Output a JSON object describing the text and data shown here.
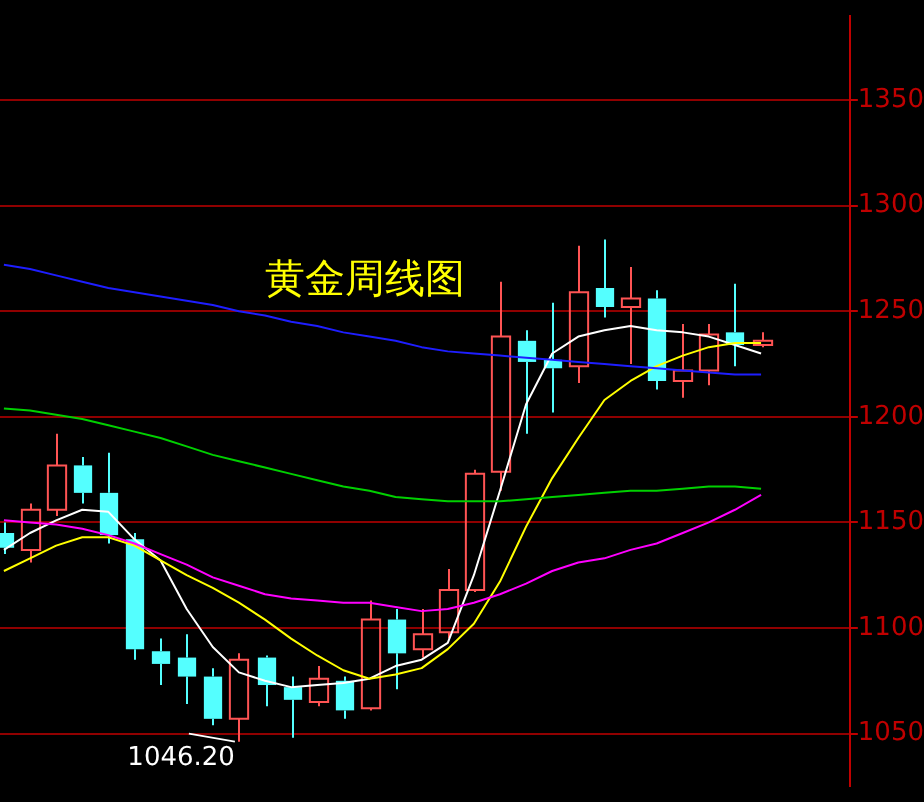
{
  "chart_data": {
    "type": "candlestick",
    "title": "黄金周线图",
    "annotations": [
      "1046.20"
    ],
    "categories": [
      null,
      null,
      null,
      null,
      null,
      null,
      null,
      null,
      null,
      null,
      null,
      null,
      null,
      null,
      null,
      null,
      null,
      null,
      null,
      null,
      null,
      null,
      null,
      null,
      null,
      null,
      null,
      null,
      null,
      null
    ],
    "ohlc": [
      [
        1145,
        1150,
        1135,
        1138
      ],
      [
        1137,
        1159,
        1131,
        1156
      ],
      [
        1156,
        1192,
        1153,
        1177
      ],
      [
        1177,
        1181,
        1159,
        1164
      ],
      [
        1164,
        1183,
        1140,
        1144
      ],
      [
        1142,
        1145,
        1085,
        1090
      ],
      [
        1089,
        1095,
        1073,
        1083
      ],
      [
        1086,
        1097,
        1064,
        1077
      ],
      [
        1077,
        1081,
        1054,
        1057
      ],
      [
        1057,
        1088,
        1046.2,
        1085
      ],
      [
        1086,
        1087,
        1063,
        1073
      ],
      [
        1072,
        1077,
        1048,
        1066
      ],
      [
        1065,
        1082,
        1063,
        1076
      ],
      [
        1075,
        1077,
        1057,
        1061
      ],
      [
        1062,
        1113,
        1061,
        1104
      ],
      [
        1104,
        1109,
        1071,
        1088
      ],
      [
        1090,
        1109,
        1086,
        1097
      ],
      [
        1098,
        1128,
        1095,
        1118
      ],
      [
        1118,
        1175,
        1117,
        1173
      ],
      [
        1174,
        1264,
        1165,
        1238
      ],
      [
        1236,
        1241,
        1192,
        1226
      ],
      [
        1227,
        1254,
        1202,
        1223
      ],
      [
        1224,
        1281,
        1216,
        1259
      ],
      [
        1261,
        1284,
        1247,
        1252
      ],
      [
        1252,
        1271,
        1225,
        1256
      ],
      [
        1256,
        1260,
        1213,
        1217
      ],
      [
        1217,
        1244,
        1209,
        1222
      ],
      [
        1222,
        1244,
        1215,
        1239
      ],
      [
        1240,
        1263,
        1224,
        1234
      ],
      [
        1234,
        1240,
        1233,
        1236
      ]
    ],
    "colors": [
      "#54ffff",
      "#ff5454",
      "#ff5454",
      "#54ffff",
      "#54ffff",
      "#54ffff",
      "#54ffff",
      "#54ffff",
      "#54ffff",
      "#ff5454",
      "#54ffff",
      "#54ffff",
      "#ff5454",
      "#54ffff",
      "#ff5454",
      "#54ffff",
      "#ff5454",
      "#ff5454",
      "#ff5454",
      "#ff5454",
      "#54ffff",
      "#54ffff",
      "#ff5454",
      "#54ffff",
      "#ff5454",
      "#54ffff",
      "#ff5454",
      "#ff5454",
      "#54ffff",
      "#ff5454"
    ],
    "series": [
      {
        "type": "line",
        "color": "#1e1eff",
        "values": [
          1272,
          1270,
          1267,
          1264,
          1261,
          1259,
          1257,
          1255,
          1253,
          1250,
          1248,
          1245,
          1243,
          1240,
          1238,
          1236,
          1233,
          1231,
          1230,
          1229,
          1228,
          1227,
          1226,
          1225,
          1224,
          1223,
          1222,
          1221,
          1220,
          1220
        ]
      },
      {
        "type": "line",
        "color": "#00d000",
        "values": [
          1204,
          1203,
          1201,
          1199,
          1196,
          1193,
          1190,
          1186,
          1182,
          1179,
          1176,
          1173,
          1170,
          1167,
          1165,
          1162,
          1161,
          1160,
          1160,
          1160,
          1161,
          1162,
          1163,
          1164,
          1165,
          1165,
          1166,
          1167,
          1167,
          1166
        ]
      },
      {
        "type": "line",
        "color": "#ff00ff",
        "values": [
          1151,
          1150,
          1149,
          1147,
          1144,
          1140,
          1135,
          1130,
          1124,
          1120,
          1116,
          1114,
          1113,
          1112,
          1112,
          1110,
          1108,
          1109,
          1112,
          1116,
          1121,
          1127,
          1131,
          1133,
          1137,
          1140,
          1145,
          1150,
          1156,
          1163
        ]
      },
      {
        "type": "line",
        "color": "#ffff00",
        "values": [
          1127,
          1133,
          1139,
          1143,
          1143,
          1139,
          1132,
          1125,
          1119,
          1112,
          1104,
          1095,
          1087,
          1080,
          1076,
          1078,
          1081,
          1090,
          1102,
          1122,
          1148,
          1171,
          1190,
          1208,
          1217,
          1224,
          1229,
          1233,
          1235,
          1235
        ]
      },
      {
        "type": "line",
        "color": "#ffffff",
        "values": [
          1137,
          1145,
          1151,
          1156,
          1155,
          1142,
          1132,
          1109,
          1091,
          1079,
          1075,
          1072,
          1073,
          1074,
          1076,
          1082,
          1085,
          1093,
          1125,
          1165,
          1206,
          1230,
          1238,
          1241,
          1243,
          1241,
          1240,
          1238,
          1234,
          1230
        ]
      }
    ],
    "ylim": [
      1025,
      1390
    ],
    "yticks": [
      1050,
      1100,
      1150,
      1200,
      1250,
      1300,
      1350
    ],
    "grid": "y",
    "tick_labels": "y"
  }
}
